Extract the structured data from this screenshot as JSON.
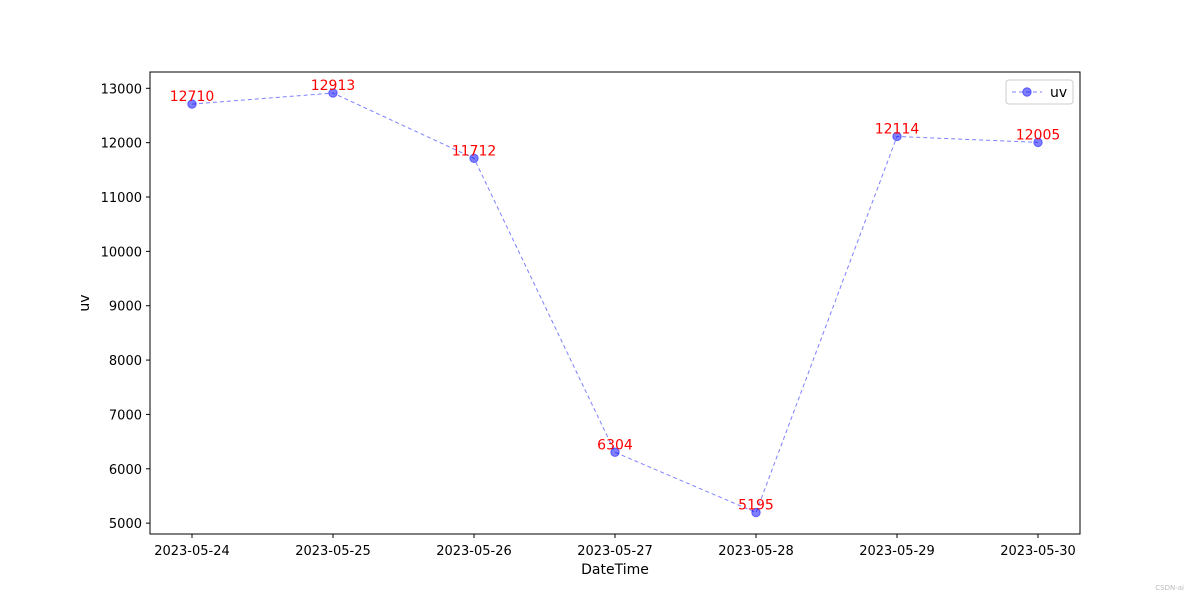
{
  "chart_data": {
    "type": "line",
    "title": "",
    "xlabel": "DateTime",
    "ylabel": "uv",
    "x": [
      "2023-05-24",
      "2023-05-25",
      "2023-05-26",
      "2023-05-27",
      "2023-05-28",
      "2023-05-29",
      "2023-05-30"
    ],
    "series": [
      {
        "name": "uv",
        "values": [
          12710,
          12913,
          11712,
          6304,
          5195,
          12114,
          12005
        ],
        "color": "#0000ff",
        "line_style": "dashed",
        "marker": "circle"
      }
    ],
    "data_labels": [
      "12710",
      "12913",
      "11712",
      "6304",
      "5195",
      "12114",
      "12005"
    ],
    "data_label_color": "#ff0000",
    "ylim": [
      4800,
      13300
    ],
    "yticks": [
      5000,
      6000,
      7000,
      8000,
      9000,
      10000,
      11000,
      12000,
      13000
    ],
    "grid": false,
    "legend_position": "top-right"
  },
  "watermark": "CSDN-ai"
}
